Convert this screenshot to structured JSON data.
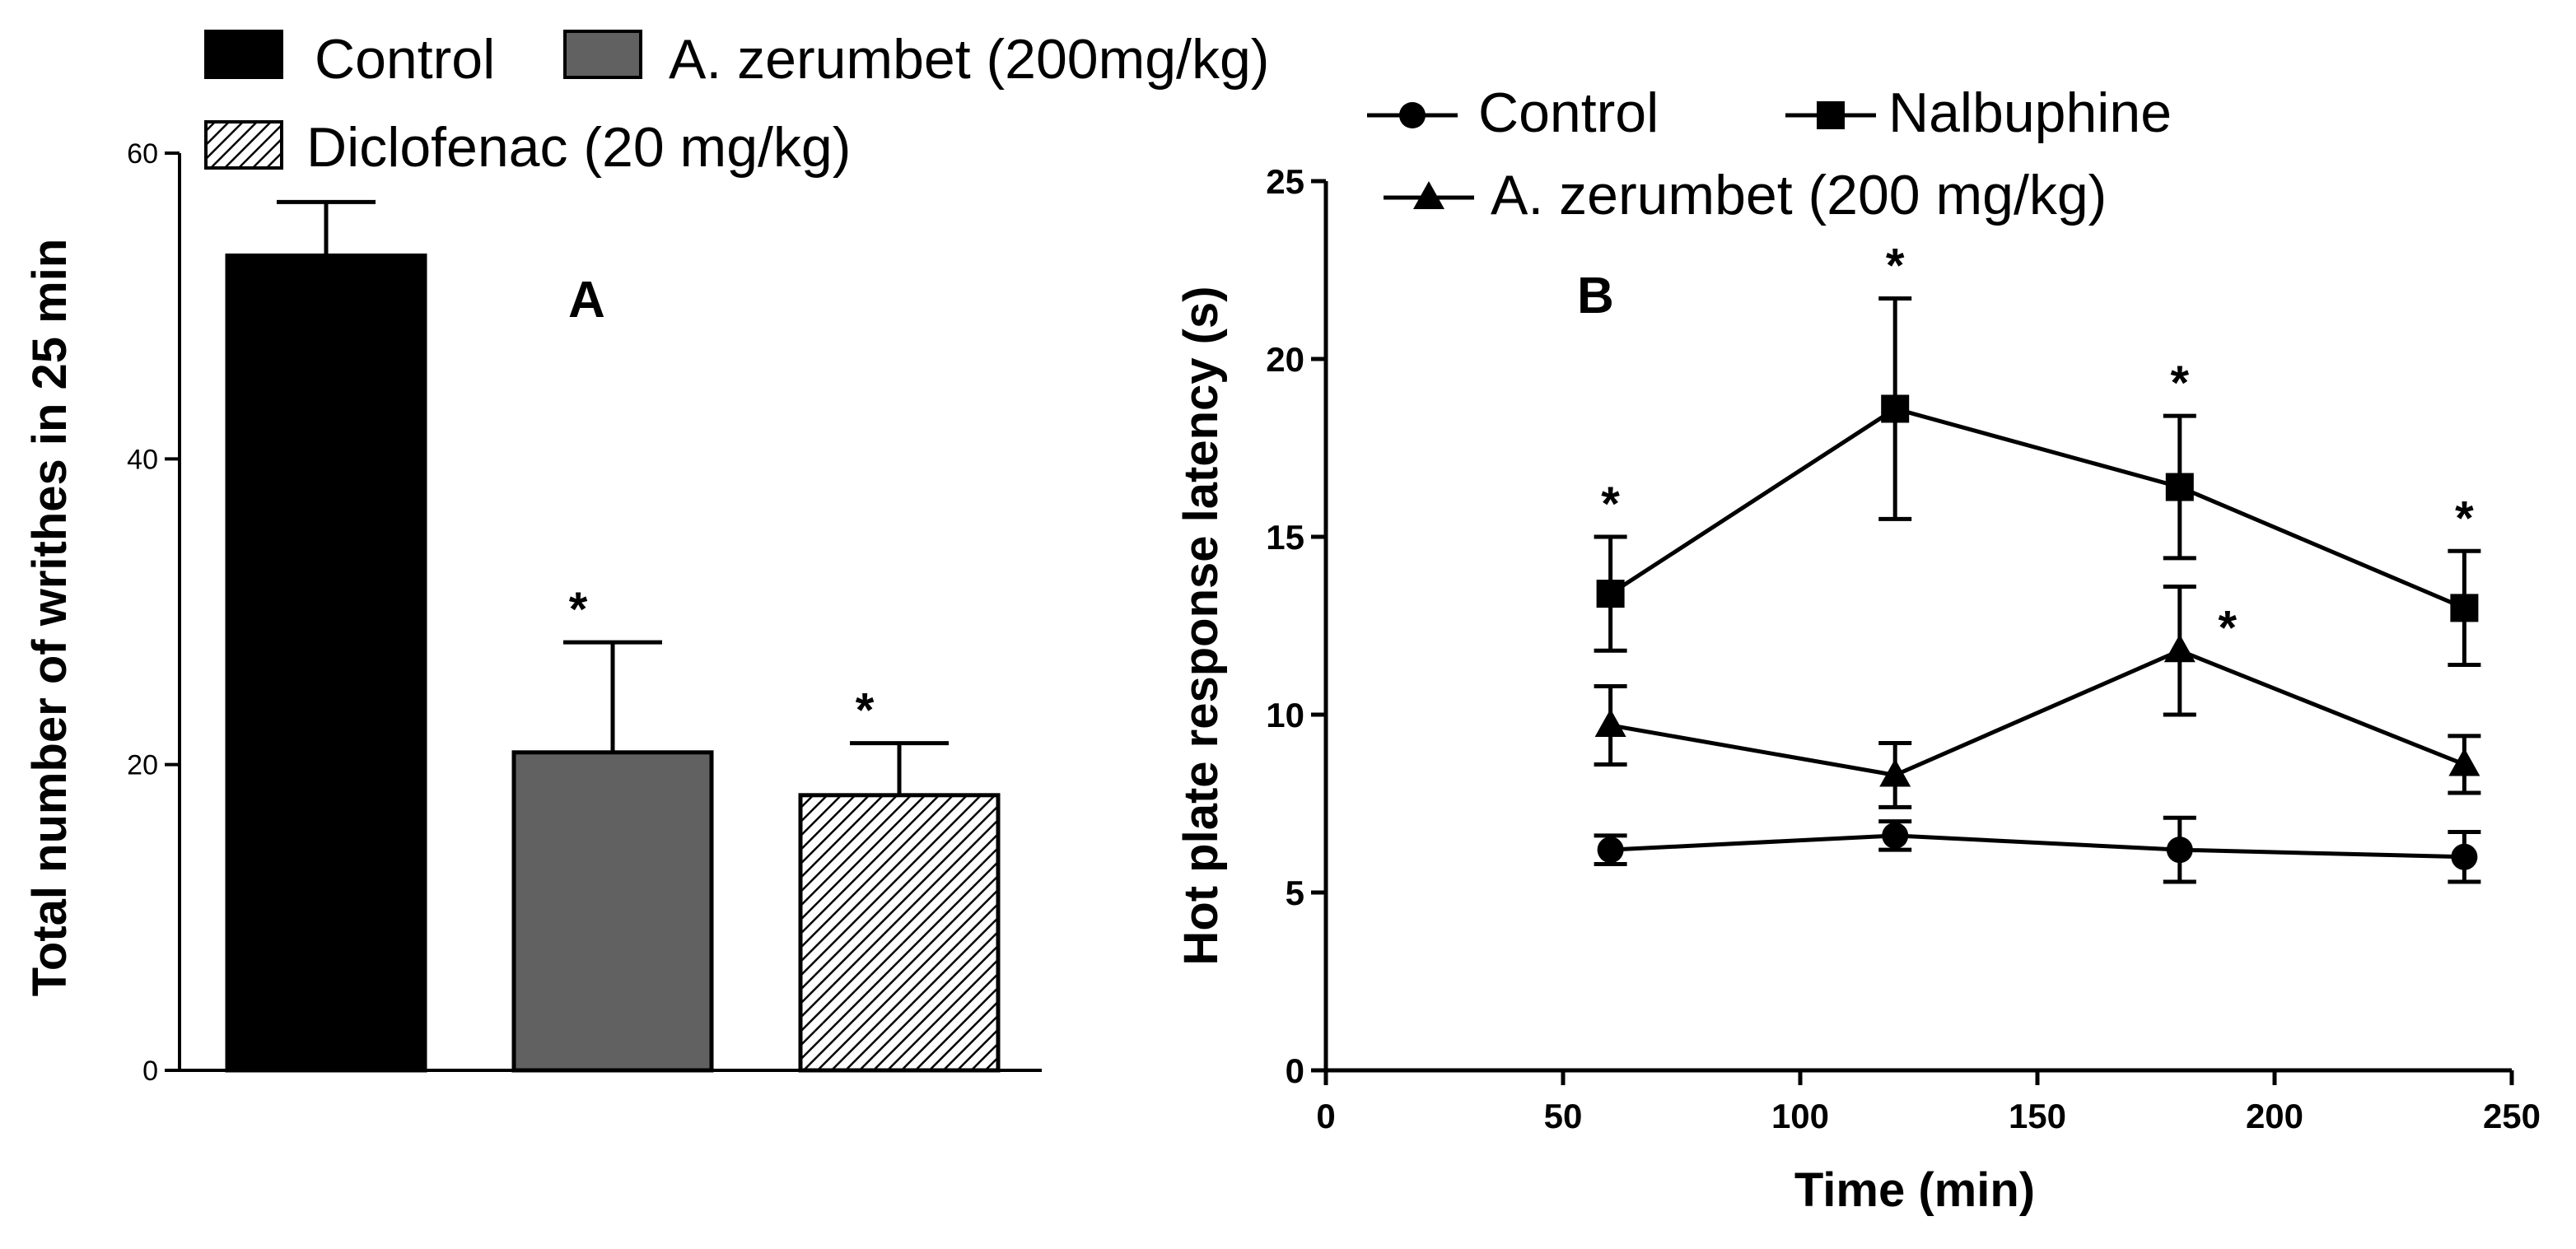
{
  "chart_data": [
    {
      "panel": "A",
      "type": "bar",
      "panel_label": "A",
      "title": "",
      "xlabel": "",
      "ylabel": "Total number of writhes in 25 min",
      "ylim": [
        0,
        60
      ],
      "yticks": [
        0,
        20,
        40,
        60
      ],
      "ytick_labels": [
        "0",
        "20",
        "40",
        "60"
      ],
      "grid": false,
      "legend": "top",
      "categories": [
        "Control",
        "A. zerumbet (200mg/kg)",
        "Diclofenac (20 mg/kg)"
      ],
      "series": [
        {
          "name": "Total number of writhes in 25 min",
          "values": [
            53.3,
            20.8,
            18.0
          ],
          "errors": [
            3.5,
            7.2,
            3.4
          ]
        }
      ],
      "legend_entries": [
        {
          "label": "Control",
          "fill": "#000000",
          "pattern": "solid"
        },
        {
          "label": "A. zerumbet (200mg/kg)",
          "fill": "#616161",
          "pattern": "solid"
        },
        {
          "label": "Diclofenac (20 mg/kg)",
          "fill": "#ffffff",
          "pattern": "hatched"
        }
      ],
      "significance": [
        "",
        "*",
        "*"
      ]
    },
    {
      "panel": "B",
      "type": "line",
      "panel_label": "B",
      "title": "",
      "xlabel": "Time (min)",
      "ylabel": "Hot plate response latency (s)",
      "xlim": [
        0,
        250
      ],
      "ylim": [
        0,
        25
      ],
      "xticks": [
        0,
        50,
        100,
        150,
        200,
        250
      ],
      "xtick_labels": [
        "0",
        "50",
        "100",
        "150",
        "200",
        "250"
      ],
      "yticks": [
        0,
        5,
        10,
        15,
        20,
        25
      ],
      "ytick_labels": [
        "0",
        "5",
        "10",
        "15",
        "20",
        "25"
      ],
      "grid": false,
      "legend": "top",
      "x": [
        60,
        120,
        180,
        240
      ],
      "series": [
        {
          "name": "Control",
          "marker": "circle",
          "values": [
            6.2,
            6.6,
            6.2,
            6.0
          ],
          "errors": [
            0.4,
            0.4,
            0.9,
            0.7
          ],
          "significance": [
            "",
            "",
            "",
            ""
          ]
        },
        {
          "name": "Nalbuphine",
          "marker": "square",
          "values": [
            13.4,
            18.6,
            16.4,
            13.0
          ],
          "errors": [
            1.6,
            3.1,
            2.0,
            1.6
          ],
          "significance": [
            "*",
            "*",
            "*",
            "*"
          ]
        },
        {
          "name": "A. zerumbet (200 mg/kg)",
          "marker": "triangle",
          "values": [
            9.7,
            8.3,
            11.8,
            8.6
          ],
          "errors": [
            1.1,
            0.9,
            1.8,
            0.8
          ],
          "significance": [
            "",
            "",
            "*",
            ""
          ]
        }
      ]
    }
  ]
}
